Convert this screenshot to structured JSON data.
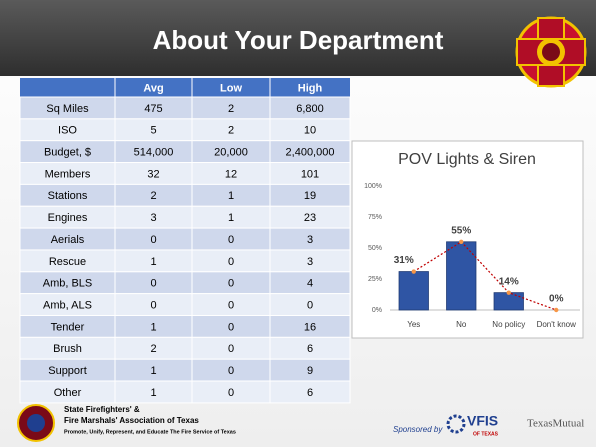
{
  "header": {
    "title": "About Your Department"
  },
  "table": {
    "columns": [
      "Avg",
      "Low",
      "High"
    ],
    "rows": [
      {
        "label": "Sq Miles",
        "values": [
          "475",
          "2",
          "6,800"
        ]
      },
      {
        "label": "ISO",
        "values": [
          "5",
          "2",
          "10"
        ]
      },
      {
        "label": "Budget, $",
        "values": [
          "514,000",
          "20,000",
          "2,400,000"
        ]
      },
      {
        "label": "Members",
        "values": [
          "32",
          "12",
          "101"
        ]
      },
      {
        "label": "Stations",
        "values": [
          "2",
          "1",
          "19"
        ]
      },
      {
        "label": "Engines",
        "values": [
          "3",
          "1",
          "23"
        ]
      },
      {
        "label": "Aerials",
        "values": [
          "0",
          "0",
          "3"
        ]
      },
      {
        "label": "Rescue",
        "values": [
          "1",
          "0",
          "3"
        ]
      },
      {
        "label": "Amb, BLS",
        "values": [
          "0",
          "0",
          "4"
        ]
      },
      {
        "label": "Amb, ALS",
        "values": [
          "0",
          "0",
          "0"
        ]
      },
      {
        "label": "Tender",
        "values": [
          "1",
          "0",
          "16"
        ]
      },
      {
        "label": "Brush",
        "values": [
          "2",
          "0",
          "6"
        ]
      },
      {
        "label": "Support",
        "values": [
          "1",
          "0",
          "9"
        ]
      },
      {
        "label": "Other",
        "values": [
          "1",
          "0",
          "6"
        ]
      }
    ]
  },
  "chart_data": {
    "type": "bar",
    "title": "POV Lights & Siren",
    "categories": [
      "Yes",
      "No",
      "No policy",
      "Don't know"
    ],
    "values": [
      31,
      55,
      14,
      0
    ],
    "value_labels": [
      "31%",
      "55%",
      "14%",
      "0%"
    ],
    "color": "#2f55a4",
    "line_color": "#c00000",
    "marker_color": "#f79646",
    "ylim": [
      0,
      100
    ],
    "yticks": [
      {
        "value": 0,
        "label": "0%"
      },
      {
        "value": 25,
        "label": "25%"
      },
      {
        "value": 50,
        "label": "50%"
      },
      {
        "value": 75,
        "label": "75%"
      },
      {
        "value": 100,
        "label": "100%"
      }
    ],
    "grid": false
  },
  "footer": {
    "org_line1": "State Firefighters' &",
    "org_line2": "Fire Marshals' Association of Texas",
    "org_tagline": "Promote, Unify, Represent, and Educate The Fire Service of Texas",
    "sponsored": "Sponsored by",
    "vfis": "VFIS",
    "vfis_sub": "OF TEXAS",
    "texas_mutual": "TexasMutual"
  }
}
